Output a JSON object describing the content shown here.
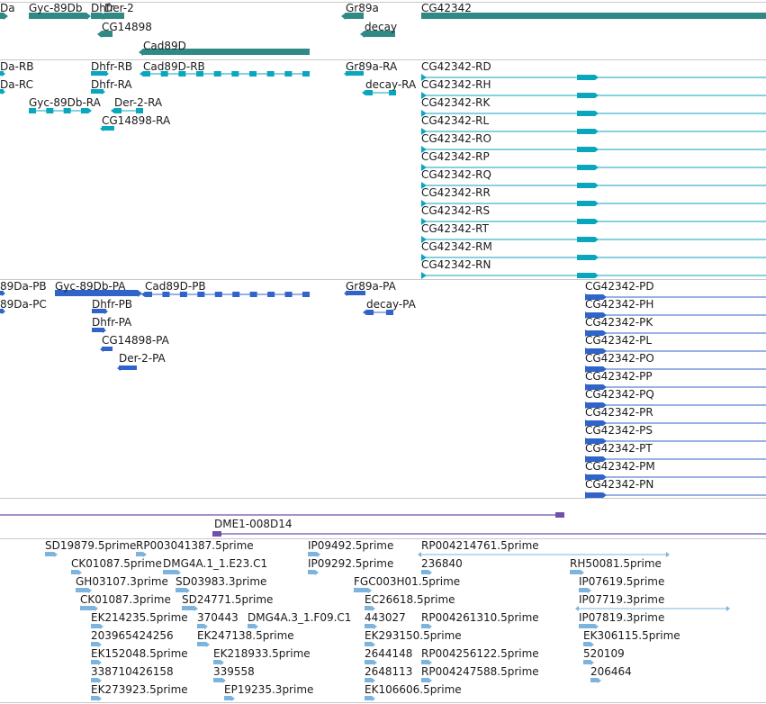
{
  "colors": {
    "gene": "#2f8a86",
    "transcript_raw": "#0aa6bd",
    "transcript_annot": "#3064c8",
    "contig": "#7050a8",
    "est": "#7db4dd"
  },
  "tracks": [
    {
      "name": "gene-track",
      "color": "gene",
      "features": [
        {
          "label": "Da"
        },
        {
          "label": "Gyc-89Db"
        },
        {
          "label": "Dhfr"
        },
        {
          "label": "Der-2"
        },
        {
          "label": "CG14898"
        },
        {
          "label": "Cad89D"
        },
        {
          "label": "Gr89a"
        },
        {
          "label": "decay"
        },
        {
          "label": "CG42342"
        }
      ]
    },
    {
      "name": "transcript-track-ra",
      "color": "transcript_raw",
      "features": [
        {
          "label": "Da-RB"
        },
        {
          "label": "Da-RC"
        },
        {
          "label": "Gyc-89Db-RA"
        },
        {
          "label": "Dhfr-RB"
        },
        {
          "label": "Dhfr-RA"
        },
        {
          "label": "Der-2-RA"
        },
        {
          "label": "CG14898-RA"
        },
        {
          "label": "Cad89D-RB"
        },
        {
          "label": "Gr89a-RA"
        },
        {
          "label": "decay-RA"
        },
        {
          "label": "CG42342-RD"
        },
        {
          "label": "CG42342-RH"
        },
        {
          "label": "CG42342-RK"
        },
        {
          "label": "CG42342-RL"
        },
        {
          "label": "CG42342-RO"
        },
        {
          "label": "CG42342-RP"
        },
        {
          "label": "CG42342-RQ"
        },
        {
          "label": "CG42342-RR"
        },
        {
          "label": "CG42342-RS"
        },
        {
          "label": "CG42342-RT"
        },
        {
          "label": "CG42342-RM"
        },
        {
          "label": "CG42342-RN"
        }
      ]
    },
    {
      "name": "transcript-track-pa",
      "color": "transcript_annot",
      "features": [
        {
          "label": "89Da-PB"
        },
        {
          "label": "89Da-PC"
        },
        {
          "label": "Gyc-89Db-PA"
        },
        {
          "label": "Dhfr-PB"
        },
        {
          "label": "Dhfr-PA"
        },
        {
          "label": "CG14898-PA"
        },
        {
          "label": "Der-2-PA"
        },
        {
          "label": "Cad89D-PB"
        },
        {
          "label": "Gr89a-PA"
        },
        {
          "label": "decay-PA"
        },
        {
          "label": "CG42342-PD"
        },
        {
          "label": "CG42342-PH"
        },
        {
          "label": "CG42342-PK"
        },
        {
          "label": "CG42342-PL"
        },
        {
          "label": "CG42342-PO"
        },
        {
          "label": "CG42342-PP"
        },
        {
          "label": "CG42342-PQ"
        },
        {
          "label": "CG42342-PR"
        },
        {
          "label": "CG42342-PS"
        },
        {
          "label": "CG42342-PT"
        },
        {
          "label": "CG42342-PM"
        },
        {
          "label": "CG42342-PN"
        }
      ]
    },
    {
      "name": "contig-track",
      "color": "contig",
      "features": [
        {
          "label": ""
        },
        {
          "label": "DME1-008D14"
        }
      ]
    },
    {
      "name": "est-track",
      "color": "est",
      "features": [
        {
          "label": "SD19879.5prime"
        },
        {
          "label": "RP003041387.5prime"
        },
        {
          "label": "IP09492.5prime"
        },
        {
          "label": "RP004214761.5prime"
        },
        {
          "label": "CK01087.5prime"
        },
        {
          "label": "DMG4A.1_1.E23.C1"
        },
        {
          "label": "IP09292.5prime"
        },
        {
          "label": "236840"
        },
        {
          "label": "RH50081.5prime"
        },
        {
          "label": "GH03107.3prime"
        },
        {
          "label": "SD03983.3prime"
        },
        {
          "label": "FGC003H01.5prime"
        },
        {
          "label": "IP07619.5prime"
        },
        {
          "label": "CK01087.3prime"
        },
        {
          "label": "SD24771.5prime"
        },
        {
          "label": "EC26618.5prime"
        },
        {
          "label": "IP07719.3prime"
        },
        {
          "label": "EK214235.5prime"
        },
        {
          "label": "370443"
        },
        {
          "label": "DMG4A.3_1.F09.C1"
        },
        {
          "label": "443027"
        },
        {
          "label": "RP004261310.5prime"
        },
        {
          "label": "IP07819.3prime"
        },
        {
          "label": "203965424256"
        },
        {
          "label": "EK247138.5prime"
        },
        {
          "label": "EK293150.5prime"
        },
        {
          "label": "EK306115.5prime"
        },
        {
          "label": "EK152048.5prime"
        },
        {
          "label": "EK218933.5prime"
        },
        {
          "label": "2644148"
        },
        {
          "label": "RP004256122.5prime"
        },
        {
          "label": "520109"
        },
        {
          "label": "338710426158"
        },
        {
          "label": "339558"
        },
        {
          "label": "2648113"
        },
        {
          "label": "RP004247588.5prime"
        },
        {
          "label": "206464"
        },
        {
          "label": "EK273923.5prime"
        },
        {
          "label": "EP19235.3prime"
        },
        {
          "label": "EK106606.5prime"
        }
      ]
    }
  ]
}
